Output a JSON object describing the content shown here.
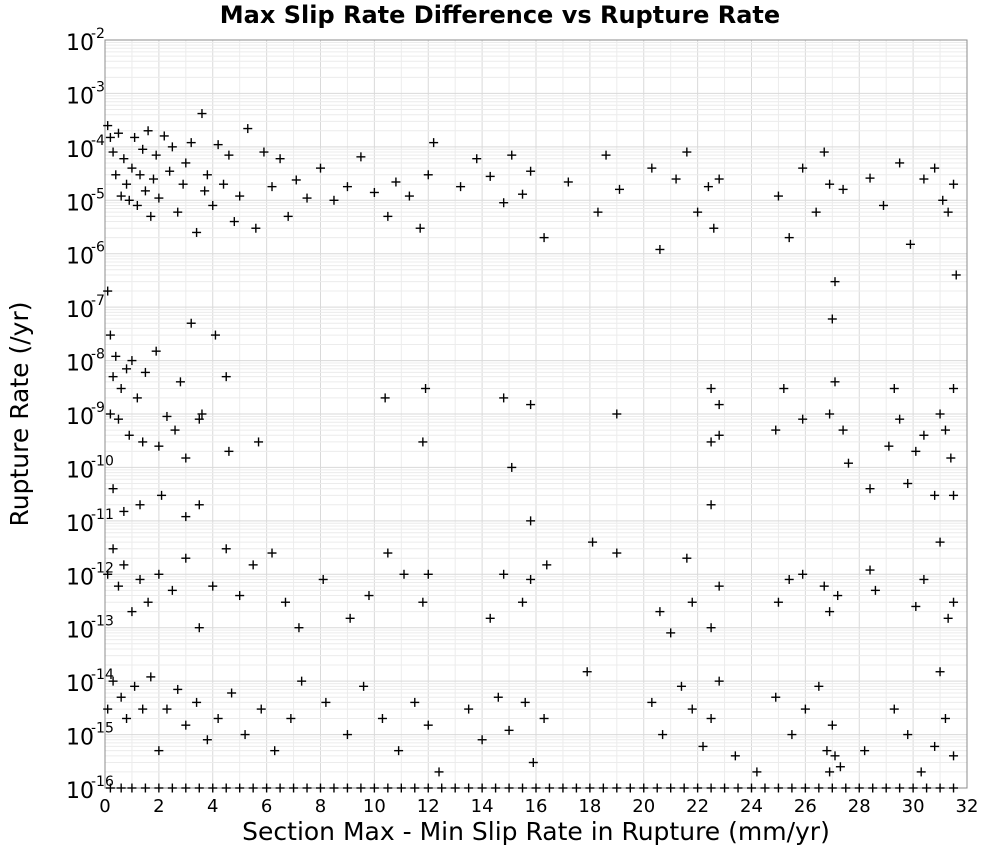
{
  "chart_data": {
    "type": "scatter",
    "title": "Max Slip Rate Difference vs Rupture Rate",
    "xlabel": "Section Max - Min Slip Rate in Rupture (mm/yr)",
    "ylabel": "Rupture Rate (/yr)",
    "xlim": [
      0,
      32
    ],
    "ylim": [
      1e-16,
      0.01
    ],
    "yscale": "log",
    "grid": true,
    "marker": "+",
    "marker_color": "#000000",
    "x_ticks": [
      "0",
      "2",
      "4",
      "6",
      "8",
      "10",
      "12",
      "14",
      "16",
      "18",
      "20",
      "22",
      "24",
      "26",
      "28",
      "30",
      "32"
    ],
    "y_ticks": [
      {
        "base": "10",
        "exp": "-2"
      },
      {
        "base": "10",
        "exp": "-3"
      },
      {
        "base": "10",
        "exp": "-4"
      },
      {
        "base": "10",
        "exp": "-5"
      },
      {
        "base": "10",
        "exp": "-6"
      },
      {
        "base": "10",
        "exp": "-7"
      },
      {
        "base": "10",
        "exp": "-8"
      },
      {
        "base": "10",
        "exp": "-9"
      },
      {
        "base": "10",
        "exp": "-10"
      },
      {
        "base": "10",
        "exp": "-11"
      },
      {
        "base": "10",
        "exp": "-12"
      },
      {
        "base": "10",
        "exp": "-13"
      },
      {
        "base": "10",
        "exp": "-14"
      },
      {
        "base": "10",
        "exp": "-15"
      },
      {
        "base": "10",
        "exp": "-16"
      }
    ],
    "points": [
      [
        0.1,
        0.00025
      ],
      [
        0.2,
        0.00015
      ],
      [
        0.3,
        8e-05
      ],
      [
        0.4,
        3e-05
      ],
      [
        0.5,
        0.00018
      ],
      [
        0.6,
        1.2e-05
      ],
      [
        0.7,
        6e-05
      ],
      [
        0.8,
        2e-05
      ],
      [
        0.9,
        1e-05
      ],
      [
        1.0,
        4e-05
      ],
      [
        1.1,
        0.00015
      ],
      [
        1.2,
        8e-06
      ],
      [
        1.3,
        3e-05
      ],
      [
        1.4,
        9e-05
      ],
      [
        1.5,
        1.5e-05
      ],
      [
        1.6,
        0.0002
      ],
      [
        1.7,
        5e-06
      ],
      [
        1.8,
        2.5e-05
      ],
      [
        1.9,
        7e-05
      ],
      [
        2.0,
        1.1e-05
      ],
      [
        2.2,
        0.00016
      ],
      [
        2.4,
        3.5e-05
      ],
      [
        2.5,
        0.0001
      ],
      [
        2.7,
        6e-06
      ],
      [
        2.9,
        2e-05
      ],
      [
        3.0,
        5e-05
      ],
      [
        3.2,
        0.00012
      ],
      [
        3.4,
        2.5e-06
      ],
      [
        3.6,
        0.00042
      ],
      [
        3.7,
        1.5e-05
      ],
      [
        3.8,
        3e-05
      ],
      [
        4.0,
        8e-06
      ],
      [
        4.2,
        0.00011
      ],
      [
        4.4,
        2e-05
      ],
      [
        4.6,
        7e-05
      ],
      [
        4.8,
        4e-06
      ],
      [
        5.0,
        1.2e-05
      ],
      [
        5.3,
        0.00022
      ],
      [
        5.6,
        3e-06
      ],
      [
        5.9,
        8e-05
      ],
      [
        6.2,
        1.8e-05
      ],
      [
        6.5,
        6e-05
      ],
      [
        6.8,
        5e-06
      ],
      [
        7.1,
        2.4e-05
      ],
      [
        7.5,
        1.1e-05
      ],
      [
        8.0,
        4e-05
      ],
      [
        8.5,
        1e-05
      ],
      [
        9.0,
        1.8e-05
      ],
      [
        9.5,
        6.5e-05
      ],
      [
        10.0,
        1.4e-05
      ],
      [
        10.5,
        5e-06
      ],
      [
        10.8,
        2.2e-05
      ],
      [
        11.3,
        1.2e-05
      ],
      [
        11.7,
        3e-06
      ],
      [
        12.0,
        3e-05
      ],
      [
        12.2,
        0.00012
      ],
      [
        13.2,
        1.8e-05
      ],
      [
        13.8,
        6e-05
      ],
      [
        14.3,
        2.8e-05
      ],
      [
        14.8,
        9e-06
      ],
      [
        15.1,
        7e-05
      ],
      [
        15.5,
        1.3e-05
      ],
      [
        15.8,
        3.5e-05
      ],
      [
        16.3,
        2e-06
      ],
      [
        17.2,
        2.2e-05
      ],
      [
        18.3,
        6e-06
      ],
      [
        18.6,
        7e-05
      ],
      [
        19.1,
        1.6e-05
      ],
      [
        20.3,
        4e-05
      ],
      [
        20.6,
        1.2e-06
      ],
      [
        21.2,
        2.5e-05
      ],
      [
        21.6,
        8e-05
      ],
      [
        22.0,
        6e-06
      ],
      [
        22.4,
        1.8e-05
      ],
      [
        22.6,
        3e-06
      ],
      [
        22.8,
        2.5e-05
      ],
      [
        25.0,
        1.2e-05
      ],
      [
        25.4,
        2e-06
      ],
      [
        25.9,
        4e-05
      ],
      [
        26.4,
        6e-06
      ],
      [
        26.7,
        8e-05
      ],
      [
        26.9,
        2e-05
      ],
      [
        27.1,
        3e-07
      ],
      [
        27.4,
        1.6e-05
      ],
      [
        28.4,
        2.6e-05
      ],
      [
        28.9,
        8e-06
      ],
      [
        29.5,
        5e-05
      ],
      [
        29.9,
        1.5e-06
      ],
      [
        30.4,
        2.5e-05
      ],
      [
        30.8,
        4e-05
      ],
      [
        31.1,
        1e-05
      ],
      [
        31.3,
        6e-06
      ],
      [
        31.5,
        2e-05
      ],
      [
        31.6,
        4e-07
      ],
      [
        27.0,
        6e-08
      ],
      [
        31.5,
        3e-09
      ],
      [
        0.1,
        2e-07
      ],
      [
        0.2,
        3e-08
      ],
      [
        0.3,
        5e-09
      ],
      [
        0.4,
        1.2e-08
      ],
      [
        0.6,
        3e-09
      ],
      [
        0.8,
        7e-09
      ],
      [
        1.0,
        1e-08
      ],
      [
        1.2,
        2e-09
      ],
      [
        1.5,
        6e-09
      ],
      [
        1.9,
        1.5e-08
      ],
      [
        2.3,
        9e-10
      ],
      [
        2.8,
        4e-09
      ],
      [
        3.2,
        5e-08
      ],
      [
        3.6,
        1e-09
      ],
      [
        4.1,
        3e-08
      ],
      [
        4.5,
        5e-09
      ],
      [
        0.2,
        1e-09
      ],
      [
        0.5,
        8e-10
      ],
      [
        0.9,
        4e-10
      ],
      [
        1.4,
        3e-10
      ],
      [
        2.0,
        2.5e-10
      ],
      [
        2.6,
        5e-10
      ],
      [
        3.0,
        1.5e-10
      ],
      [
        3.5,
        8e-10
      ],
      [
        4.6,
        2e-10
      ],
      [
        5.7,
        3e-10
      ],
      [
        10.4,
        2e-09
      ],
      [
        11.8,
        3e-10
      ],
      [
        11.9,
        3e-09
      ],
      [
        14.8,
        2e-09
      ],
      [
        15.1,
        1e-10
      ],
      [
        15.8,
        1.5e-09
      ],
      [
        19.0,
        1e-09
      ],
      [
        22.5,
        3e-09
      ],
      [
        22.8,
        1.5e-09
      ],
      [
        22.5,
        3e-10
      ],
      [
        22.8,
        4e-10
      ],
      [
        24.9,
        5e-10
      ],
      [
        25.2,
        3e-09
      ],
      [
        25.9,
        8e-10
      ],
      [
        26.9,
        1e-09
      ],
      [
        27.1,
        4e-09
      ],
      [
        27.4,
        5e-10
      ],
      [
        27.6,
        1.2e-10
      ],
      [
        29.1,
        2.5e-10
      ],
      [
        29.3,
        3e-09
      ],
      [
        29.5,
        8e-10
      ],
      [
        30.1,
        2e-10
      ],
      [
        30.4,
        4e-10
      ],
      [
        31.0,
        1e-09
      ],
      [
        31.2,
        5e-10
      ],
      [
        31.4,
        1.5e-10
      ],
      [
        0.3,
        4e-11
      ],
      [
        0.7,
        1.5e-11
      ],
      [
        1.3,
        2e-11
      ],
      [
        2.1,
        3e-11
      ],
      [
        3.0,
        1.2e-11
      ],
      [
        3.5,
        2e-11
      ],
      [
        28.4,
        4e-11
      ],
      [
        29.8,
        5e-11
      ],
      [
        30.8,
        3e-11
      ],
      [
        31.5,
        3e-11
      ],
      [
        22.5,
        2e-11
      ],
      [
        15.8,
        1e-11
      ],
      [
        0.1,
        1e-12
      ],
      [
        0.3,
        3e-12
      ],
      [
        0.5,
        6e-13
      ],
      [
        0.7,
        1.5e-12
      ],
      [
        1.0,
        2e-13
      ],
      [
        1.3,
        8e-13
      ],
      [
        1.6,
        3e-13
      ],
      [
        2.0,
        1e-12
      ],
      [
        2.5,
        5e-13
      ],
      [
        3.0,
        2e-12
      ],
      [
        3.5,
        1e-13
      ],
      [
        4.0,
        6e-13
      ],
      [
        4.5,
        3e-12
      ],
      [
        5.0,
        4e-13
      ],
      [
        5.5,
        1.5e-12
      ],
      [
        6.2,
        2.5e-12
      ],
      [
        6.7,
        3e-13
      ],
      [
        7.2,
        1e-13
      ],
      [
        8.1,
        8e-13
      ],
      [
        9.1,
        1.5e-13
      ],
      [
        9.8,
        4e-13
      ],
      [
        10.5,
        2.5e-12
      ],
      [
        11.1,
        1e-12
      ],
      [
        11.8,
        3e-13
      ],
      [
        12.0,
        1e-12
      ],
      [
        14.3,
        1.5e-13
      ],
      [
        14.8,
        1e-12
      ],
      [
        15.5,
        3e-13
      ],
      [
        15.8,
        8e-13
      ],
      [
        16.4,
        1.5e-12
      ],
      [
        18.1,
        4e-12
      ],
      [
        19.0,
        2.5e-12
      ],
      [
        20.6,
        2e-13
      ],
      [
        21.0,
        8e-14
      ],
      [
        21.6,
        2e-12
      ],
      [
        21.8,
        3e-13
      ],
      [
        22.5,
        1e-13
      ],
      [
        22.8,
        6e-13
      ],
      [
        25.0,
        3e-13
      ],
      [
        25.4,
        8e-13
      ],
      [
        25.9,
        1e-12
      ],
      [
        26.7,
        6e-13
      ],
      [
        26.9,
        2e-13
      ],
      [
        27.2,
        4e-13
      ],
      [
        28.4,
        1.2e-12
      ],
      [
        28.6,
        5e-13
      ],
      [
        30.1,
        2.5e-13
      ],
      [
        30.4,
        8e-13
      ],
      [
        31.0,
        4e-12
      ],
      [
        31.3,
        1.5e-13
      ],
      [
        31.5,
        3e-13
      ],
      [
        0.1,
        3e-15
      ],
      [
        0.3,
        1e-14
      ],
      [
        0.6,
        5e-15
      ],
      [
        0.8,
        2e-15
      ],
      [
        1.1,
        8e-15
      ],
      [
        1.4,
        3e-15
      ],
      [
        1.7,
        1.2e-14
      ],
      [
        2.0,
        5e-16
      ],
      [
        2.3,
        3e-15
      ],
      [
        2.7,
        7e-15
      ],
      [
        3.0,
        1.5e-15
      ],
      [
        3.4,
        4e-15
      ],
      [
        3.8,
        8e-16
      ],
      [
        4.2,
        2e-15
      ],
      [
        4.7,
        6e-15
      ],
      [
        5.2,
        1e-15
      ],
      [
        5.8,
        3e-15
      ],
      [
        6.3,
        5e-16
      ],
      [
        6.9,
        2e-15
      ],
      [
        7.3,
        1e-14
      ],
      [
        8.2,
        4e-15
      ],
      [
        9.0,
        1e-15
      ],
      [
        9.6,
        8e-15
      ],
      [
        10.3,
        2e-15
      ],
      [
        10.9,
        5e-16
      ],
      [
        11.5,
        4e-15
      ],
      [
        12.0,
        1.5e-15
      ],
      [
        12.4,
        2e-16
      ],
      [
        13.5,
        3e-15
      ],
      [
        14.0,
        8e-16
      ],
      [
        14.6,
        5e-15
      ],
      [
        15.0,
        1.2e-15
      ],
      [
        15.6,
        4e-15
      ],
      [
        15.9,
        3e-16
      ],
      [
        16.3,
        2e-15
      ],
      [
        17.9,
        1.5e-14
      ],
      [
        20.3,
        4e-15
      ],
      [
        20.7,
        1e-15
      ],
      [
        21.4,
        8e-15
      ],
      [
        21.8,
        3e-15
      ],
      [
        22.2,
        6e-16
      ],
      [
        22.5,
        2e-15
      ],
      [
        22.8,
        1e-14
      ],
      [
        23.4,
        4e-16
      ],
      [
        24.2,
        2e-16
      ],
      [
        24.9,
        5e-15
      ],
      [
        25.5,
        1e-15
      ],
      [
        26.0,
        3e-15
      ],
      [
        26.5,
        8e-15
      ],
      [
        26.8,
        5e-16
      ],
      [
        26.9,
        2e-16
      ],
      [
        27.0,
        1.5e-15
      ],
      [
        27.1,
        4e-16
      ],
      [
        27.3,
        2.5e-16
      ],
      [
        28.2,
        5e-16
      ],
      [
        29.3,
        3e-15
      ],
      [
        29.8,
        1e-15
      ],
      [
        30.3,
        2e-16
      ],
      [
        30.8,
        6e-16
      ],
      [
        31.2,
        2e-15
      ],
      [
        31.5,
        4e-16
      ],
      [
        31.0,
        1.5e-14
      ],
      [
        0.2,
        1e-16
      ],
      [
        0.6,
        1e-16
      ],
      [
        1.0,
        1e-16
      ],
      [
        1.5,
        1e-16
      ],
      [
        2.0,
        1e-16
      ],
      [
        2.5,
        1e-16
      ],
      [
        3.0,
        1e-16
      ],
      [
        3.5,
        1e-16
      ],
      [
        4.0,
        1e-16
      ],
      [
        4.5,
        1e-16
      ],
      [
        5.0,
        1e-16
      ],
      [
        5.5,
        1e-16
      ],
      [
        6.0,
        1e-16
      ],
      [
        6.5,
        1e-16
      ],
      [
        7.0,
        1e-16
      ],
      [
        7.5,
        1e-16
      ],
      [
        8.0,
        1e-16
      ],
      [
        8.5,
        1e-16
      ],
      [
        9.0,
        1e-16
      ],
      [
        9.5,
        1e-16
      ],
      [
        10.0,
        1e-16
      ],
      [
        10.5,
        1e-16
      ],
      [
        11.0,
        1e-16
      ],
      [
        11.5,
        1e-16
      ],
      [
        12.0,
        1e-16
      ],
      [
        12.5,
        1e-16
      ],
      [
        13.0,
        1e-16
      ],
      [
        13.5,
        1e-16
      ],
      [
        14.0,
        1e-16
      ],
      [
        14.5,
        1e-16
      ],
      [
        15.0,
        1e-16
      ],
      [
        15.5,
        1e-16
      ],
      [
        16.0,
        1e-16
      ],
      [
        16.5,
        1e-16
      ],
      [
        17.0,
        1e-16
      ],
      [
        17.5,
        1e-16
      ],
      [
        18.0,
        1e-16
      ],
      [
        18.5,
        1e-16
      ],
      [
        19.0,
        1e-16
      ],
      [
        19.5,
        1e-16
      ],
      [
        20.0,
        1e-16
      ],
      [
        20.5,
        1e-16
      ],
      [
        21.0,
        1e-16
      ],
      [
        21.5,
        1e-16
      ],
      [
        22.0,
        1e-16
      ],
      [
        22.5,
        1e-16
      ],
      [
        23.0,
        1e-16
      ],
      [
        23.5,
        1e-16
      ],
      [
        24.0,
        1e-16
      ],
      [
        24.5,
        1e-16
      ],
      [
        25.0,
        1e-16
      ],
      [
        25.5,
        1e-16
      ],
      [
        26.0,
        1e-16
      ],
      [
        26.5,
        1e-16
      ],
      [
        27.0,
        1e-16
      ],
      [
        27.5,
        1e-16
      ],
      [
        28.0,
        1e-16
      ],
      [
        28.5,
        1e-16
      ],
      [
        29.0,
        1e-16
      ],
      [
        29.5,
        1e-16
      ],
      [
        30.0,
        1e-16
      ],
      [
        30.5,
        1e-16
      ],
      [
        31.0,
        1e-16
      ],
      [
        31.5,
        1e-16
      ]
    ]
  }
}
